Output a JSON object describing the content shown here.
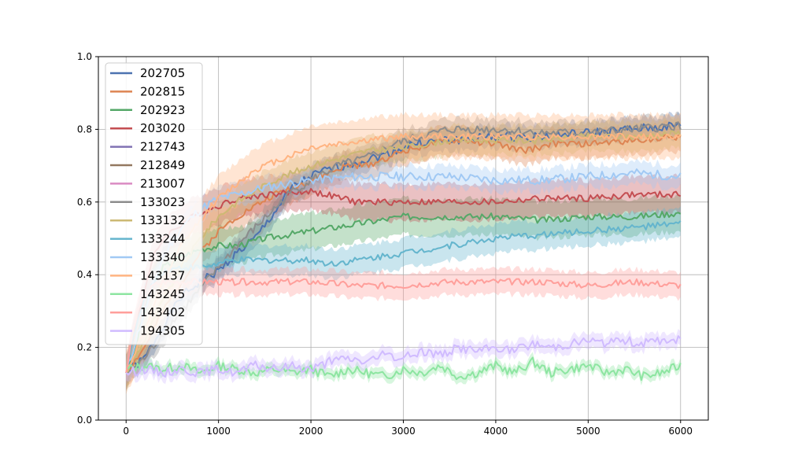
{
  "chart_data": {
    "type": "line",
    "title": "",
    "xlabel": "",
    "ylabel": "",
    "xlim": [
      -300,
      6300
    ],
    "ylim": [
      0.0,
      1.0
    ],
    "xticks": [
      0,
      1000,
      2000,
      3000,
      4000,
      5000,
      6000
    ],
    "yticks": [
      0.0,
      0.2,
      0.4,
      0.6,
      0.8,
      1.0
    ],
    "xtick_labels": [
      "0",
      "1000",
      "2000",
      "3000",
      "4000",
      "5000",
      "6000"
    ],
    "ytick_labels": [
      "0.0",
      "0.2",
      "0.4",
      "0.6",
      "0.8",
      "1.0"
    ],
    "grid": true,
    "legend_position": "top-left",
    "series": [
      {
        "name": "202705",
        "color": "#4c72b0",
        "band": 0.03,
        "points": [
          [
            0,
            0.13
          ],
          [
            200,
            0.17
          ],
          [
            400,
            0.26
          ],
          [
            600,
            0.34
          ],
          [
            800,
            0.38
          ],
          [
            1000,
            0.41
          ],
          [
            1200,
            0.46
          ],
          [
            1400,
            0.5
          ],
          [
            1600,
            0.57
          ],
          [
            1800,
            0.64
          ],
          [
            2000,
            0.67
          ],
          [
            2200,
            0.69
          ],
          [
            2500,
            0.71
          ],
          [
            2800,
            0.73
          ],
          [
            3100,
            0.76
          ],
          [
            3500,
            0.77
          ],
          [
            4000,
            0.78
          ],
          [
            4500,
            0.78
          ],
          [
            5000,
            0.79
          ],
          [
            5500,
            0.8
          ],
          [
            6000,
            0.81
          ]
        ]
      },
      {
        "name": "202815",
        "color": "#dd8452",
        "band": 0.04,
        "points": [
          [
            0,
            0.13
          ],
          [
            200,
            0.2
          ],
          [
            400,
            0.3
          ],
          [
            600,
            0.38
          ],
          [
            800,
            0.46
          ],
          [
            1000,
            0.52
          ],
          [
            1200,
            0.56
          ],
          [
            1400,
            0.59
          ],
          [
            1600,
            0.62
          ],
          [
            1800,
            0.64
          ],
          [
            2000,
            0.66
          ],
          [
            2200,
            0.68
          ],
          [
            2400,
            0.7
          ],
          [
            2600,
            0.7
          ],
          [
            2800,
            0.72
          ],
          [
            3000,
            0.74
          ],
          [
            3300,
            0.76
          ],
          [
            3600,
            0.77
          ],
          [
            4000,
            0.76
          ],
          [
            4300,
            0.74
          ],
          [
            4600,
            0.76
          ],
          [
            5000,
            0.76
          ],
          [
            5500,
            0.77
          ],
          [
            6000,
            0.78
          ]
        ]
      },
      {
        "name": "202923",
        "color": "#55a868",
        "band": 0.05,
        "points": [
          [
            0,
            0.13
          ],
          [
            100,
            0.2
          ],
          [
            200,
            0.3
          ],
          [
            300,
            0.38
          ],
          [
            400,
            0.42
          ],
          [
            600,
            0.45
          ],
          [
            800,
            0.47
          ],
          [
            1000,
            0.48
          ],
          [
            1200,
            0.48
          ],
          [
            1500,
            0.5
          ],
          [
            2000,
            0.52
          ],
          [
            2500,
            0.54
          ],
          [
            3000,
            0.56
          ],
          [
            3500,
            0.56
          ],
          [
            4000,
            0.56
          ],
          [
            4500,
            0.55
          ],
          [
            5000,
            0.56
          ],
          [
            5500,
            0.56
          ],
          [
            6000,
            0.57
          ]
        ]
      },
      {
        "name": "203020",
        "color": "#c44e52",
        "band": 0.05,
        "points": [
          [
            0,
            0.13
          ],
          [
            100,
            0.25
          ],
          [
            200,
            0.36
          ],
          [
            300,
            0.45
          ],
          [
            400,
            0.5
          ],
          [
            600,
            0.54
          ],
          [
            800,
            0.57
          ],
          [
            1000,
            0.59
          ],
          [
            1200,
            0.61
          ],
          [
            1500,
            0.62
          ],
          [
            2000,
            0.63
          ],
          [
            2500,
            0.6
          ],
          [
            3000,
            0.6
          ],
          [
            3500,
            0.6
          ],
          [
            4000,
            0.6
          ],
          [
            4500,
            0.61
          ],
          [
            5000,
            0.61
          ],
          [
            5500,
            0.62
          ],
          [
            6000,
            0.62
          ]
        ]
      },
      {
        "name": "212743",
        "color": "#8172b3",
        "band": 0.03,
        "points": []
      },
      {
        "name": "212849",
        "color": "#937860",
        "band": 0.03,
        "points": []
      },
      {
        "name": "213007",
        "color": "#da8bc3",
        "band": 0.03,
        "points": []
      },
      {
        "name": "133023",
        "color": "#8c8c8c",
        "band": 0.03,
        "points": [
          [
            0,
            0.13
          ],
          [
            200,
            0.17
          ],
          [
            400,
            0.24
          ],
          [
            600,
            0.3
          ],
          [
            800,
            0.36
          ],
          [
            1000,
            0.42
          ],
          [
            1200,
            0.48
          ],
          [
            1400,
            0.53
          ],
          [
            1600,
            0.58
          ],
          [
            1800,
            0.63
          ],
          [
            2000,
            0.66
          ],
          [
            2300,
            0.7
          ],
          [
            2600,
            0.72
          ],
          [
            2900,
            0.76
          ],
          [
            3200,
            0.78
          ],
          [
            3500,
            0.8
          ],
          [
            4000,
            0.8
          ],
          [
            4500,
            0.79
          ],
          [
            5000,
            0.79
          ],
          [
            5500,
            0.8
          ],
          [
            6000,
            0.81
          ]
        ]
      },
      {
        "name": "133132",
        "color": "#ccb974",
        "band": 0.04,
        "points": [
          [
            0,
            0.13
          ],
          [
            200,
            0.22
          ],
          [
            400,
            0.33
          ],
          [
            600,
            0.42
          ],
          [
            800,
            0.5
          ],
          [
            1000,
            0.56
          ],
          [
            1200,
            0.6
          ],
          [
            1400,
            0.63
          ],
          [
            1600,
            0.66
          ],
          [
            1800,
            0.68
          ],
          [
            2000,
            0.7
          ],
          [
            2300,
            0.72
          ],
          [
            2600,
            0.74
          ],
          [
            3000,
            0.75
          ],
          [
            3500,
            0.77
          ],
          [
            4000,
            0.77
          ],
          [
            4500,
            0.77
          ],
          [
            5000,
            0.78
          ],
          [
            5500,
            0.78
          ],
          [
            6000,
            0.79
          ]
        ]
      },
      {
        "name": "133244",
        "color": "#64b5cd",
        "band": 0.04,
        "points": [
          [
            0,
            0.13
          ],
          [
            100,
            0.25
          ],
          [
            200,
            0.33
          ],
          [
            300,
            0.38
          ],
          [
            400,
            0.41
          ],
          [
            600,
            0.42
          ],
          [
            800,
            0.42
          ],
          [
            1000,
            0.43
          ],
          [
            1200,
            0.44
          ],
          [
            1500,
            0.44
          ],
          [
            2000,
            0.44
          ],
          [
            2200,
            0.43
          ],
          [
            2500,
            0.44
          ],
          [
            3000,
            0.46
          ],
          [
            3500,
            0.48
          ],
          [
            4000,
            0.5
          ],
          [
            4500,
            0.51
          ],
          [
            5000,
            0.52
          ],
          [
            5500,
            0.53
          ],
          [
            6000,
            0.54
          ]
        ]
      },
      {
        "name": "133340",
        "color": "#a1c9f4",
        "band": 0.03,
        "points": [
          [
            0,
            0.13
          ],
          [
            200,
            0.3
          ],
          [
            400,
            0.45
          ],
          [
            600,
            0.53
          ],
          [
            800,
            0.58
          ],
          [
            1000,
            0.61
          ],
          [
            1200,
            0.62
          ],
          [
            1500,
            0.64
          ],
          [
            2000,
            0.66
          ],
          [
            2500,
            0.67
          ],
          [
            3000,
            0.67
          ],
          [
            3500,
            0.67
          ],
          [
            4000,
            0.66
          ],
          [
            4500,
            0.66
          ],
          [
            5000,
            0.67
          ],
          [
            5500,
            0.68
          ],
          [
            6000,
            0.67
          ]
        ]
      },
      {
        "name": "143137",
        "color": "#ffb482",
        "band": 0.06,
        "points": [
          [
            0,
            0.13
          ],
          [
            200,
            0.25
          ],
          [
            400,
            0.38
          ],
          [
            600,
            0.48
          ],
          [
            800,
            0.55
          ],
          [
            1000,
            0.61
          ],
          [
            1200,
            0.65
          ],
          [
            1400,
            0.69
          ],
          [
            1600,
            0.71
          ],
          [
            1800,
            0.73
          ],
          [
            2000,
            0.75
          ],
          [
            2300,
            0.76
          ],
          [
            2600,
            0.77
          ],
          [
            3000,
            0.78
          ],
          [
            3500,
            0.78
          ],
          [
            4000,
            0.78
          ],
          [
            4500,
            0.78
          ],
          [
            5000,
            0.78
          ],
          [
            5500,
            0.78
          ],
          [
            6000,
            0.78
          ]
        ]
      },
      {
        "name": "143245",
        "color": "#8de5a1",
        "band": 0.015,
        "points": [
          [
            0,
            0.14
          ],
          [
            200,
            0.15
          ],
          [
            400,
            0.14
          ],
          [
            600,
            0.15
          ],
          [
            800,
            0.13
          ],
          [
            1000,
            0.15
          ],
          [
            1200,
            0.14
          ],
          [
            1400,
            0.13
          ],
          [
            1600,
            0.14
          ],
          [
            1800,
            0.13
          ],
          [
            2000,
            0.14
          ],
          [
            2200,
            0.12
          ],
          [
            2400,
            0.14
          ],
          [
            2600,
            0.13
          ],
          [
            2800,
            0.12
          ],
          [
            3000,
            0.14
          ],
          [
            3200,
            0.13
          ],
          [
            3400,
            0.15
          ],
          [
            3600,
            0.12
          ],
          [
            3800,
            0.13
          ],
          [
            4000,
            0.15
          ],
          [
            4200,
            0.13
          ],
          [
            4400,
            0.16
          ],
          [
            4600,
            0.13
          ],
          [
            4800,
            0.14
          ],
          [
            5000,
            0.15
          ],
          [
            5200,
            0.13
          ],
          [
            5400,
            0.14
          ],
          [
            5600,
            0.12
          ],
          [
            5800,
            0.13
          ],
          [
            6000,
            0.15
          ]
        ]
      },
      {
        "name": "143402",
        "color": "#ff9f9b",
        "band": 0.035,
        "points": [
          [
            0,
            0.13
          ],
          [
            100,
            0.28
          ],
          [
            200,
            0.34
          ],
          [
            300,
            0.37
          ],
          [
            400,
            0.38
          ],
          [
            600,
            0.38
          ],
          [
            1000,
            0.38
          ],
          [
            1500,
            0.38
          ],
          [
            2000,
            0.38
          ],
          [
            2500,
            0.37
          ],
          [
            3000,
            0.37
          ],
          [
            3500,
            0.38
          ],
          [
            4000,
            0.38
          ],
          [
            4500,
            0.38
          ],
          [
            5000,
            0.37
          ],
          [
            5500,
            0.38
          ],
          [
            6000,
            0.37
          ]
        ]
      },
      {
        "name": "194305",
        "color": "#d0bbff",
        "band": 0.02,
        "points": [
          [
            0,
            0.13
          ],
          [
            200,
            0.14
          ],
          [
            400,
            0.13
          ],
          [
            600,
            0.14
          ],
          [
            800,
            0.13
          ],
          [
            1000,
            0.14
          ],
          [
            1200,
            0.13
          ],
          [
            1400,
            0.15
          ],
          [
            1600,
            0.14
          ],
          [
            1800,
            0.15
          ],
          [
            2000,
            0.14
          ],
          [
            2200,
            0.16
          ],
          [
            2400,
            0.17
          ],
          [
            2600,
            0.16
          ],
          [
            2800,
            0.18
          ],
          [
            3000,
            0.17
          ],
          [
            3200,
            0.19
          ],
          [
            3400,
            0.18
          ],
          [
            3600,
            0.2
          ],
          [
            3800,
            0.19
          ],
          [
            4000,
            0.2
          ],
          [
            4200,
            0.19
          ],
          [
            4400,
            0.21
          ],
          [
            4600,
            0.2
          ],
          [
            4800,
            0.21
          ],
          [
            5000,
            0.22
          ],
          [
            5200,
            0.21
          ],
          [
            5400,
            0.22
          ],
          [
            5600,
            0.21
          ],
          [
            5800,
            0.22
          ],
          [
            6000,
            0.22
          ]
        ]
      }
    ]
  }
}
